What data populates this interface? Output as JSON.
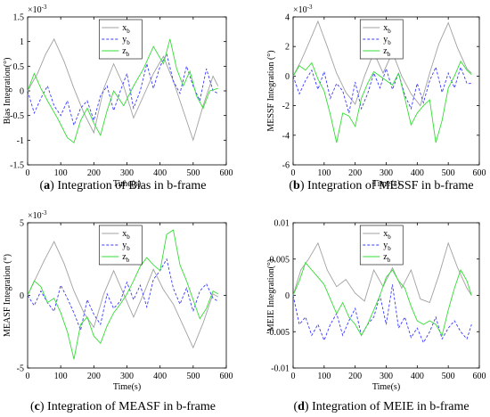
{
  "chart_data": [
    {
      "type": "line",
      "caption": {
        "tag": "a",
        "text": "Integration of Bias in b-frame"
      },
      "xlabel": "Time(s)",
      "ylabel": "Bias Integration(°)",
      "exponent": "×10",
      "exponent_power": "-3",
      "xlim": [
        0,
        600
      ],
      "ylim": [
        -1.5,
        1.5
      ],
      "xticks": [
        "0",
        "100",
        "200",
        "300",
        "400",
        "500",
        "600"
      ],
      "yticks": [
        "1.5",
        "1",
        "0.5",
        "0",
        "-0.5",
        "-1",
        "-1.5"
      ],
      "legend": [
        "x",
        "y",
        "z"
      ],
      "legend_sub": "b",
      "legend_position": "top-center",
      "series": [
        {
          "name": "xb",
          "color": "#a0a0a0",
          "dash": "solid",
          "x": [
            0,
            30,
            55,
            80,
            110,
            140,
            170,
            200,
            230,
            260,
            290,
            320,
            350,
            380,
            410,
            440,
            470,
            500,
            530,
            560,
            575
          ],
          "y": [
            0,
            0.35,
            0.75,
            1.05,
            0.6,
            0.05,
            -0.45,
            -0.85,
            0.05,
            0.55,
            0.1,
            -0.55,
            -0.1,
            0.35,
            0.7,
            0.2,
            -0.4,
            -1.0,
            -0.3,
            0.3,
            0.1
          ]
        },
        {
          "name": "yb",
          "color": "#3a3aff",
          "dash": "dashed",
          "x": [
            0,
            20,
            40,
            60,
            80,
            100,
            120,
            140,
            160,
            180,
            200,
            220,
            240,
            260,
            280,
            300,
            320,
            340,
            360,
            380,
            400,
            420,
            440,
            460,
            480,
            500,
            520,
            540,
            560,
            575
          ],
          "y": [
            0,
            -0.45,
            -0.15,
            0.1,
            -0.3,
            -0.5,
            -0.2,
            -0.7,
            -0.35,
            -0.2,
            -0.6,
            -0.1,
            0.1,
            -0.4,
            0.0,
            0.35,
            -0.35,
            0.0,
            0.55,
            0.05,
            0.5,
            0.75,
            0.2,
            -0.05,
            0.5,
            0.1,
            -0.2,
            0.45,
            0.0,
            -0.05
          ]
        },
        {
          "name": "zb",
          "color": "#33dd33",
          "dash": "solid",
          "x": [
            0,
            20,
            40,
            60,
            90,
            120,
            140,
            160,
            180,
            200,
            220,
            240,
            260,
            290,
            320,
            350,
            380,
            410,
            430,
            450,
            470,
            490,
            510,
            530,
            550,
            575
          ],
          "y": [
            0,
            0.35,
            0.05,
            -0.2,
            -0.55,
            -0.95,
            -1.05,
            -0.6,
            -0.35,
            -0.65,
            -0.9,
            -0.4,
            0.0,
            -0.3,
            0.1,
            0.45,
            0.9,
            0.55,
            1.05,
            0.45,
            0.1,
            0.4,
            -0.1,
            -0.35,
            0.0,
            0.05
          ]
        }
      ]
    },
    {
      "type": "line",
      "caption": {
        "tag": "b",
        "text": "Integration of MESSF in b-frame"
      },
      "xlabel": "Time(s)",
      "ylabel": "MESSF Integration (°)",
      "exponent": "×10",
      "exponent_power": "-3",
      "xlim": [
        0,
        600
      ],
      "ylim": [
        -6,
        4
      ],
      "xticks": [
        "0",
        "100",
        "200",
        "300",
        "400",
        "500",
        "600"
      ],
      "yticks": [
        "4",
        "2",
        "0",
        "-2",
        "-4",
        "-6"
      ],
      "legend": [
        "x",
        "y",
        "z"
      ],
      "legend_sub": "b",
      "legend_position": "top-center",
      "series": [
        {
          "name": "xb",
          "color": "#a0a0a0",
          "dash": "solid",
          "x": [
            0,
            25,
            50,
            80,
            110,
            140,
            170,
            200,
            230,
            260,
            290,
            320,
            350,
            380,
            410,
            440,
            470,
            500,
            530,
            560,
            575
          ],
          "y": [
            0,
            1.0,
            2.2,
            3.7,
            2.0,
            0.2,
            -1.1,
            -1.9,
            0.0,
            1.6,
            0.2,
            1.6,
            0.0,
            -1.2,
            -2.0,
            0.2,
            2.2,
            3.6,
            1.9,
            0.5,
            0.2
          ]
        },
        {
          "name": "yb",
          "color": "#3a3aff",
          "dash": "dashed",
          "x": [
            0,
            20,
            40,
            60,
            80,
            100,
            120,
            140,
            160,
            180,
            200,
            220,
            240,
            260,
            280,
            300,
            320,
            340,
            360,
            380,
            400,
            420,
            440,
            460,
            480,
            500,
            520,
            540,
            560,
            575
          ],
          "y": [
            0,
            -1.2,
            -0.3,
            0.4,
            -0.9,
            0.3,
            -1.5,
            -0.5,
            -1.0,
            -2.5,
            -0.4,
            -2.2,
            -1.2,
            0.2,
            -0.8,
            0.5,
            -0.9,
            0.2,
            -1.3,
            -2.2,
            -0.5,
            -1.8,
            -0.3,
            0.6,
            -1.1,
            0.2,
            -0.8,
            0.6,
            -0.5,
            -0.5
          ]
        },
        {
          "name": "zb",
          "color": "#33dd33",
          "dash": "solid",
          "x": [
            0,
            20,
            40,
            60,
            80,
            100,
            120,
            140,
            160,
            180,
            200,
            220,
            240,
            260,
            280,
            300,
            320,
            340,
            360,
            380,
            400,
            420,
            440,
            460,
            480,
            500,
            520,
            540,
            560,
            575
          ],
          "y": [
            0,
            0.7,
            0.4,
            0.9,
            -0.2,
            -1.0,
            -2.6,
            -4.5,
            -2.5,
            -2.7,
            -3.4,
            -1.5,
            -0.5,
            0.3,
            0.0,
            -0.3,
            -0.6,
            0.2,
            -1.5,
            -3.3,
            -2.5,
            -2.0,
            -1.6,
            -4.5,
            -3.0,
            -0.8,
            0.0,
            1.0,
            0.4,
            0.1
          ]
        }
      ]
    },
    {
      "type": "line",
      "caption": {
        "tag": "c",
        "text": "Integration of MEASF in b-frame"
      },
      "xlabel": "Time(s)",
      "ylabel": "MEASF Integration (°)",
      "exponent": "×10",
      "exponent_power": "-3",
      "xlim": [
        0,
        600
      ],
      "ylim": [
        -5,
        5
      ],
      "xticks": [
        "0",
        "100",
        "200",
        "300",
        "400",
        "500",
        "600"
      ],
      "yticks": [
        "5",
        "0",
        "-5"
      ],
      "legend": [
        "x",
        "y",
        "z"
      ],
      "legend_sub": "b",
      "legend_position": "top-center",
      "series": [
        {
          "name": "xb",
          "color": "#a0a0a0",
          "dash": "solid",
          "x": [
            0,
            25,
            50,
            80,
            110,
            140,
            170,
            200,
            230,
            260,
            290,
            320,
            350,
            380,
            410,
            440,
            470,
            500,
            530,
            560,
            575
          ],
          "y": [
            0,
            1.2,
            2.4,
            3.7,
            2.2,
            0.3,
            -1.2,
            -2.2,
            0.1,
            1.7,
            0.1,
            -1.5,
            0.1,
            1.8,
            0.4,
            -0.6,
            -2.1,
            -3.6,
            -1.9,
            0.1,
            -0.1
          ]
        },
        {
          "name": "yb",
          "color": "#3a3aff",
          "dash": "dashed",
          "x": [
            0,
            20,
            40,
            60,
            80,
            100,
            120,
            140,
            160,
            180,
            200,
            220,
            240,
            260,
            280,
            300,
            320,
            340,
            360,
            380,
            400,
            420,
            440,
            460,
            480,
            500,
            520,
            540,
            560,
            575
          ],
          "y": [
            0,
            -0.7,
            0.3,
            -0.5,
            -1.1,
            0.7,
            -0.2,
            -1.2,
            -2.4,
            -0.3,
            -1.3,
            -2.0,
            0.1,
            -0.9,
            -0.4,
            0.9,
            -0.3,
            0.7,
            -0.8,
            1.1,
            1.7,
            2.5,
            0.5,
            -0.6,
            0.5,
            -1.1,
            0.3,
            0.8,
            -0.2,
            -0.4
          ]
        },
        {
          "name": "zb",
          "color": "#33dd33",
          "dash": "solid",
          "x": [
            0,
            20,
            40,
            60,
            80,
            100,
            120,
            140,
            160,
            180,
            200,
            220,
            240,
            260,
            280,
            300,
            320,
            340,
            360,
            380,
            400,
            420,
            440,
            460,
            480,
            500,
            520,
            540,
            560,
            575
          ],
          "y": [
            0,
            1.0,
            0.6,
            -0.5,
            -0.2,
            -1.2,
            -2.5,
            -4.4,
            -2.0,
            -1.5,
            -2.8,
            -3.3,
            -2.1,
            -1.2,
            -0.6,
            0.1,
            1.0,
            2.0,
            2.6,
            2.1,
            1.7,
            4.2,
            4.5,
            2.1,
            1.0,
            -0.3,
            -1.6,
            -0.9,
            0.3,
            0.1
          ]
        }
      ]
    },
    {
      "type": "line",
      "caption": {
        "tag": "d",
        "text": "Integration of MEIE in b-frame"
      },
      "xlabel": "Time(s)",
      "ylabel": "MEIE Integration(°)",
      "exponent": "",
      "exponent_power": "",
      "xlim": [
        0,
        600
      ],
      "ylim": [
        -0.01,
        0.01
      ],
      "xticks": [
        "0",
        "100",
        "200",
        "300",
        "400",
        "500",
        "600"
      ],
      "yticks": [
        "0.01",
        "0.005",
        "0",
        "-0.005",
        "-0.01"
      ],
      "legend": [
        "x",
        "y",
        "z"
      ],
      "legend_sub": "b",
      "legend_position": "top-center",
      "series": [
        {
          "name": "xb",
          "color": "#a0a0a0",
          "dash": "solid",
          "x": [
            0,
            25,
            50,
            80,
            110,
            140,
            170,
            200,
            230,
            260,
            290,
            320,
            350,
            380,
            410,
            440,
            470,
            500,
            530,
            560,
            575
          ],
          "y": [
            0,
            0.0035,
            0.005,
            0.0072,
            0.0035,
            0.0012,
            0.0022,
            0.0003,
            -0.0008,
            0.0035,
            0.0012,
            0.0038,
            0.001,
            0.0035,
            -0.0005,
            -0.001,
            0.0028,
            0.0072,
            0.0038,
            0.001,
            0.0
          ]
        },
        {
          "name": "yb",
          "color": "#3a3aff",
          "dash": "dashed",
          "x": [
            0,
            20,
            40,
            60,
            80,
            100,
            120,
            140,
            160,
            180,
            200,
            220,
            240,
            260,
            280,
            300,
            320,
            340,
            360,
            380,
            400,
            420,
            440,
            460,
            480,
            500,
            520,
            540,
            560,
            575
          ],
          "y": [
            0,
            -0.004,
            -0.003,
            -0.0055,
            -0.004,
            -0.0062,
            -0.004,
            -0.0025,
            -0.0055,
            -0.0035,
            -0.0018,
            -0.0055,
            -0.004,
            -0.003,
            0.0,
            -0.004,
            0.0015,
            -0.0045,
            -0.003,
            -0.0058,
            -0.0045,
            -0.0065,
            -0.005,
            -0.003,
            -0.006,
            -0.0045,
            -0.0035,
            -0.005,
            -0.006,
            -0.004
          ]
        },
        {
          "name": "zb",
          "color": "#33dd33",
          "dash": "solid",
          "x": [
            0,
            20,
            40,
            60,
            80,
            100,
            120,
            140,
            160,
            180,
            200,
            220,
            240,
            260,
            280,
            300,
            320,
            340,
            360,
            380,
            400,
            420,
            440,
            460,
            480,
            500,
            520,
            540,
            560,
            575
          ],
          "y": [
            0,
            0.002,
            0.0045,
            0.0035,
            0.0025,
            0.0015,
            -0.0005,
            -0.0025,
            -0.001,
            -0.003,
            -0.004,
            -0.0055,
            -0.004,
            -0.002,
            0.0,
            0.0025,
            0.0035,
            0.002,
            0.001,
            -0.0015,
            -0.0035,
            -0.004,
            -0.0035,
            -0.004,
            -0.0055,
            -0.002,
            0.001,
            0.0035,
            0.002,
            0.0
          ]
        }
      ]
    }
  ]
}
